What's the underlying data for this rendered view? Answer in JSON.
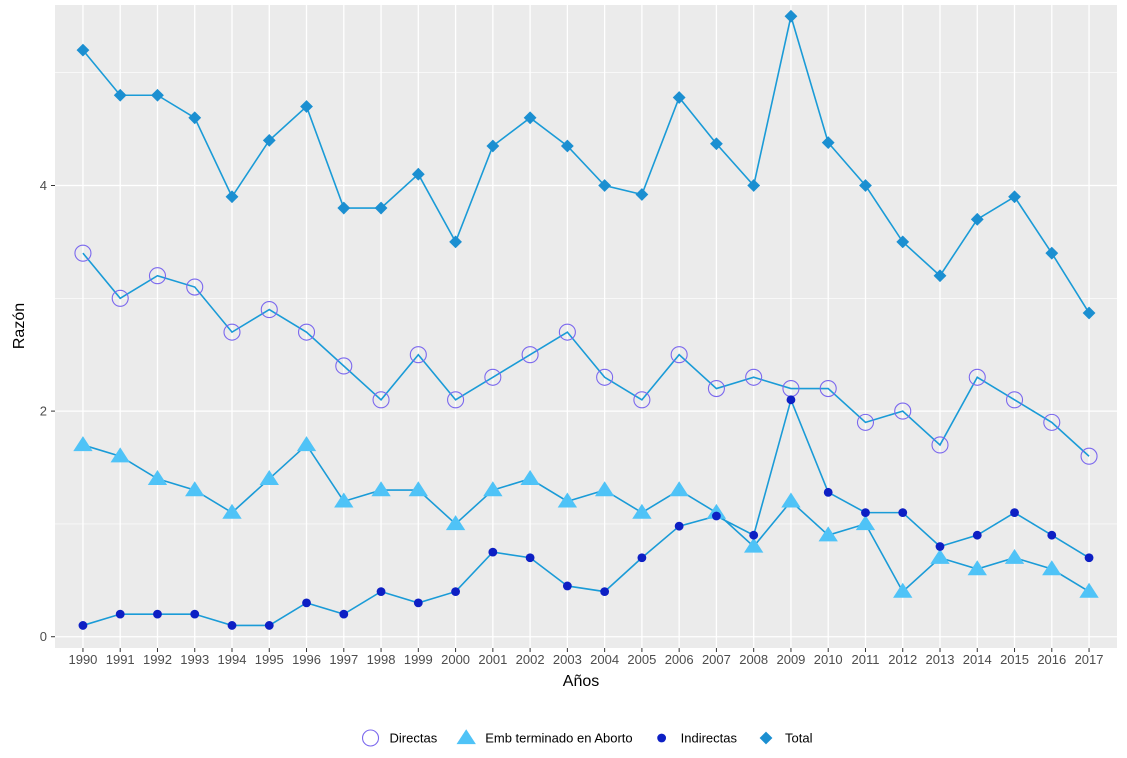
{
  "chart_data": {
    "type": "line",
    "title": "",
    "xlabel": "Años",
    "ylabel": "Razón",
    "x": [
      1990,
      1991,
      1992,
      1993,
      1994,
      1995,
      1996,
      1997,
      1998,
      1999,
      2000,
      2001,
      2002,
      2003,
      2004,
      2005,
      2006,
      2007,
      2008,
      2009,
      2010,
      2011,
      2012,
      2013,
      2014,
      2015,
      2016,
      2017
    ],
    "x_tick_labels": [
      "1990",
      "1991",
      "1992",
      "1993",
      "1994",
      "1995",
      "1996",
      "1997",
      "1998",
      "1999",
      "2000",
      "2001",
      "2002",
      "2003",
      "2004",
      "2005",
      "2006",
      "2007",
      "2008",
      "2009",
      "2010",
      "2011",
      "2012",
      "2013",
      "2014",
      "2015",
      "2016",
      "2017"
    ],
    "y_ticks": [
      0,
      2,
      4
    ],
    "y_tick_labels": [
      "0",
      "2",
      "4"
    ],
    "ylim": [
      -0.1,
      5.6
    ],
    "grid": true,
    "legend_position": "bottom",
    "background_color": "#ebebeb",
    "grid_color": "#ffffff",
    "line_color": "#1a9bd7",
    "series": [
      {
        "name": "Directas",
        "marker": "open-circle",
        "marker_color": "#7b68ee",
        "values": [
          3.4,
          3.0,
          3.2,
          3.1,
          2.7,
          2.9,
          2.7,
          2.4,
          2.1,
          2.5,
          2.1,
          2.3,
          2.5,
          2.7,
          2.3,
          2.1,
          2.5,
          2.2,
          2.3,
          2.2,
          2.2,
          1.9,
          2.0,
          1.7,
          2.3,
          2.1,
          1.9,
          1.6
        ]
      },
      {
        "name": "Emb terminado en Aborto",
        "marker": "triangle",
        "marker_color": "#4fc3f7",
        "values": [
          1.7,
          1.6,
          1.4,
          1.3,
          1.1,
          1.4,
          1.7,
          1.2,
          1.3,
          1.3,
          1.0,
          1.3,
          1.4,
          1.2,
          1.3,
          1.1,
          1.3,
          1.1,
          0.8,
          1.2,
          0.9,
          1.0,
          0.4,
          0.7,
          0.6,
          0.7,
          0.6,
          0.4
        ]
      },
      {
        "name": "Indirectas",
        "marker": "filled-circle",
        "marker_color": "#0d1fc4",
        "values": [
          0.1,
          0.2,
          0.2,
          0.2,
          0.1,
          0.1,
          0.3,
          0.2,
          0.4,
          0.3,
          0.4,
          0.75,
          0.7,
          0.45,
          0.4,
          0.7,
          0.98,
          1.07,
          0.9,
          2.1,
          1.28,
          1.1,
          1.1,
          0.8,
          0.9,
          1.1,
          0.9,
          0.7
        ]
      },
      {
        "name": "Total",
        "marker": "diamond",
        "marker_color": "#1b8fd1",
        "values": [
          5.2,
          4.8,
          4.8,
          4.6,
          3.9,
          4.4,
          4.7,
          3.8,
          3.8,
          4.1,
          3.5,
          4.35,
          4.6,
          4.35,
          4.0,
          3.92,
          4.78,
          4.37,
          4.0,
          5.5,
          4.38,
          4.0,
          3.5,
          3.2,
          3.7,
          3.9,
          3.4,
          2.87
        ]
      }
    ]
  }
}
